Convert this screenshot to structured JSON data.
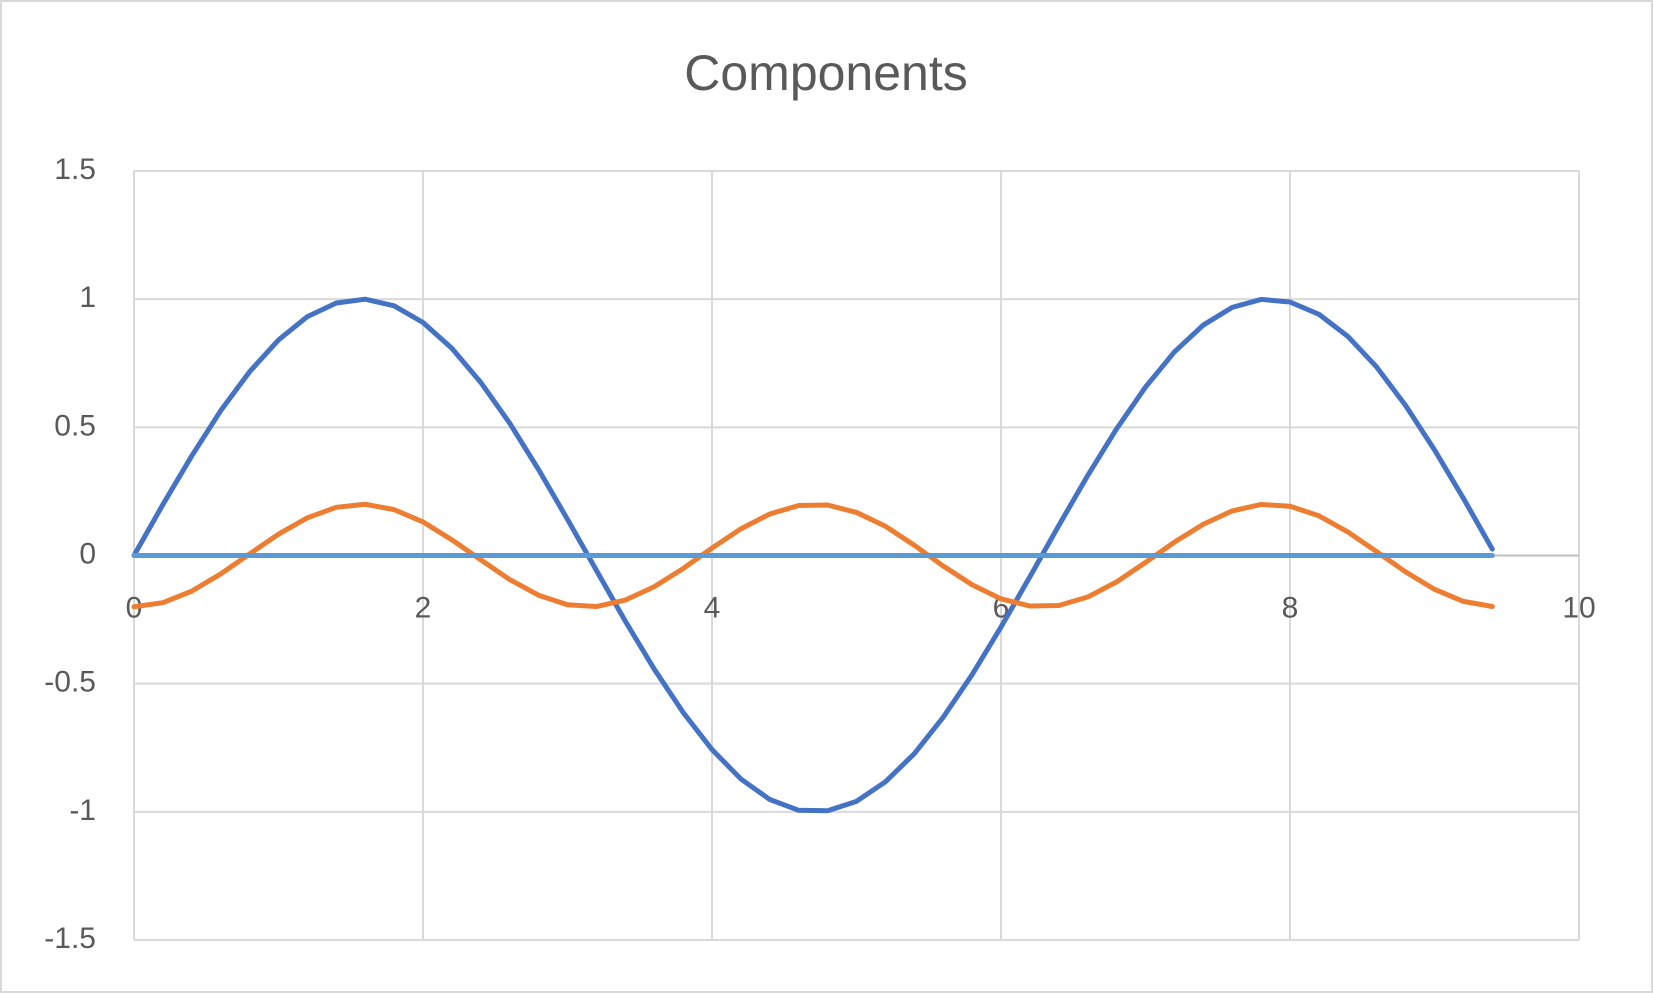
{
  "chart_data": {
    "type": "line",
    "title": "Components",
    "x": [
      0,
      0.2,
      0.4,
      0.6,
      0.8,
      1.0,
      1.2,
      1.4,
      1.6,
      1.8,
      2.0,
      2.2,
      2.4,
      2.6,
      2.8,
      3.0,
      3.2,
      3.4,
      3.6,
      3.8,
      4.0,
      4.2,
      4.4,
      4.6,
      4.8,
      5.0,
      5.2,
      5.4,
      5.6,
      5.8,
      6.0,
      6.2,
      6.4,
      6.6,
      6.8,
      7.0,
      7.2,
      7.4,
      7.6,
      7.8,
      8.0,
      8.2,
      8.4,
      8.6,
      8.8,
      9.0,
      9.2,
      9.4
    ],
    "series": [
      {
        "color": "#4472c4",
        "values": [
          0,
          0.199,
          0.389,
          0.565,
          0.717,
          0.841,
          0.932,
          0.985,
          1.0,
          0.974,
          0.909,
          0.808,
          0.675,
          0.516,
          0.335,
          0.141,
          -0.058,
          -0.256,
          -0.443,
          -0.612,
          -0.757,
          -0.872,
          -0.952,
          -0.994,
          -0.996,
          -0.959,
          -0.883,
          -0.773,
          -0.631,
          -0.465,
          -0.279,
          -0.083,
          0.117,
          0.312,
          0.494,
          0.657,
          0.794,
          0.899,
          0.968,
          0.999,
          0.989,
          0.941,
          0.855,
          0.735,
          0.585,
          0.412,
          0.223,
          0.025
        ]
      },
      {
        "color": "#ed7d31",
        "values": [
          -0.2,
          -0.184,
          -0.139,
          -0.072,
          0.006,
          0.083,
          0.147,
          0.188,
          0.2,
          0.179,
          0.131,
          0.061,
          -0.017,
          -0.094,
          -0.155,
          -0.192,
          -0.199,
          -0.174,
          -0.122,
          -0.051,
          0.029,
          0.104,
          0.162,
          0.195,
          0.197,
          0.168,
          0.114,
          0.04,
          -0.041,
          -0.114,
          -0.169,
          -0.197,
          -0.195,
          -0.162,
          -0.103,
          -0.027,
          0.052,
          0.122,
          0.174,
          0.199,
          0.192,
          0.155,
          0.092,
          0.015,
          -0.064,
          -0.132,
          -0.179,
          -0.199
        ]
      },
      {
        "color": "#5b9bd5",
        "values": [
          0,
          0,
          0,
          0,
          0,
          0,
          0,
          0,
          0,
          0,
          0,
          0,
          0,
          0,
          0,
          0,
          0,
          0,
          0,
          0,
          0,
          0,
          0,
          0,
          0,
          0,
          0,
          0,
          0,
          0,
          0,
          0,
          0,
          0,
          0,
          0,
          0,
          0,
          0,
          0,
          0,
          0,
          0,
          0,
          0,
          0,
          0,
          0
        ]
      }
    ],
    "xlim": [
      0,
      10
    ],
    "xticks": [
      0,
      2,
      4,
      6,
      8,
      10
    ],
    "ylim": [
      -1.5,
      1.5
    ],
    "yticks": [
      -1.5,
      -1,
      -0.5,
      0,
      0.5,
      1,
      1.5
    ],
    "grid": true
  }
}
